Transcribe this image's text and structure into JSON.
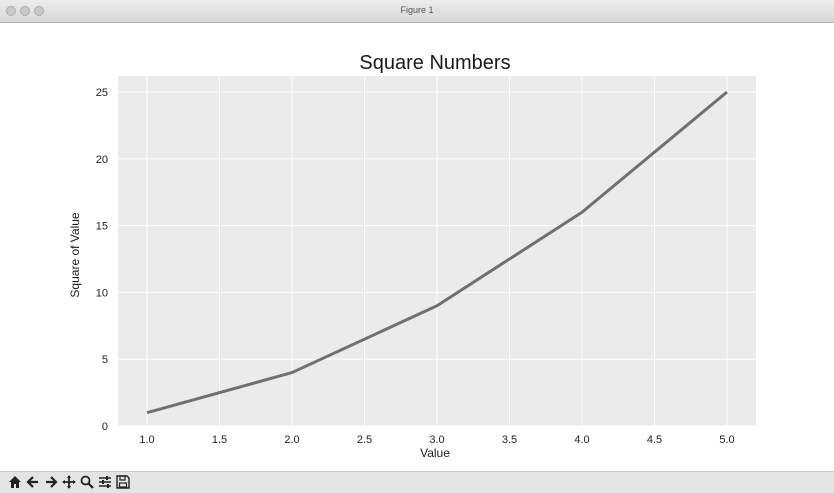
{
  "window": {
    "title": "Figure 1"
  },
  "toolbar": {
    "buttons": [
      {
        "name": "home",
        "icon": "home-icon"
      },
      {
        "name": "back",
        "icon": "arrow-left-icon"
      },
      {
        "name": "forward",
        "icon": "arrow-right-icon"
      },
      {
        "name": "pan",
        "icon": "move-icon"
      },
      {
        "name": "zoom",
        "icon": "zoom-icon"
      },
      {
        "name": "configure",
        "icon": "sliders-icon"
      },
      {
        "name": "save",
        "icon": "save-icon"
      }
    ]
  },
  "chart_data": {
    "type": "line",
    "title": "Square Numbers",
    "xlabel": "Value",
    "ylabel": "Square of Value",
    "x": [
      1,
      2,
      3,
      4,
      5
    ],
    "series": [
      {
        "values": [
          1,
          4,
          9,
          16,
          25
        ]
      }
    ],
    "xlim": [
      0.8,
      5.2
    ],
    "ylim": [
      0,
      26.2
    ],
    "xticks": [
      "1.0",
      "1.5",
      "2.0",
      "2.5",
      "3.0",
      "3.5",
      "4.0",
      "4.5",
      "5.0"
    ],
    "yticks": [
      "0",
      "5",
      "10",
      "15",
      "20",
      "25"
    ],
    "grid": true,
    "style": {
      "background": "#ebebeb",
      "grid_color": "#ffffff",
      "line_color": "#707070"
    }
  }
}
